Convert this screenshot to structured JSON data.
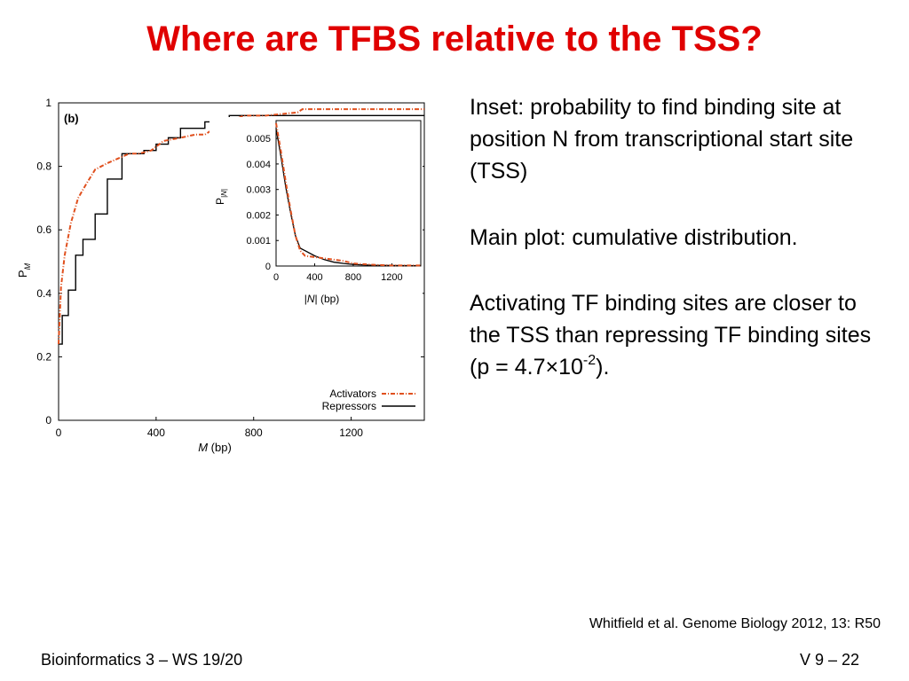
{
  "slide": {
    "title": "Where are TFBS relative to the TSS?",
    "paragraphs": {
      "inset": "Inset: probability to find binding site at position N from transcriptional start site (TSS)",
      "main": "Main plot: cumulative distribution.",
      "activating_text": "Activating TF binding sites are closer to the TSS than repressing TF binding sites (p = 4.7×10",
      "activating_exponent": "-2",
      "activating_tail": ")."
    },
    "citation": "Whitfield et al. Genome Biology 2012, 13: R50",
    "footer_left": "Bioinformatics 3 – WS 19/20",
    "footer_right": "V 9  – 22"
  },
  "chart_data": [
    {
      "type": "line",
      "panel_label": "(b)",
      "xlabel": "M (bp)",
      "ylabel": "P_M",
      "xlim": [
        0,
        1500
      ],
      "ylim": [
        0,
        1
      ],
      "x_ticks": [
        "0",
        "400",
        "800",
        "1200"
      ],
      "y_ticks": [
        "0",
        "0.2",
        "0.4",
        "0.6",
        "0.8",
        "1"
      ],
      "legend_position": "bottom-right",
      "colors": {
        "activators": "#e0501e",
        "repressors": "#000000"
      },
      "series": [
        {
          "name": "Activators",
          "x": [
            0,
            10,
            25,
            50,
            80,
            110,
            150,
            200,
            230,
            260,
            290,
            330,
            380,
            430,
            500,
            560,
            600,
            640,
            660,
            700,
            760,
            850,
            980,
            1000,
            1100,
            1500
          ],
          "y": [
            0.24,
            0.42,
            0.52,
            0.62,
            0.7,
            0.74,
            0.79,
            0.81,
            0.82,
            0.83,
            0.84,
            0.84,
            0.85,
            0.88,
            0.89,
            0.9,
            0.9,
            0.92,
            0.92,
            0.94,
            0.96,
            0.96,
            0.97,
            0.98,
            0.98,
            0.98
          ]
        },
        {
          "name": "Repressors",
          "x": [
            0,
            15,
            40,
            70,
            100,
            150,
            200,
            260,
            300,
            350,
            400,
            450,
            500,
            600,
            700,
            1500
          ],
          "y": [
            0.24,
            0.33,
            0.41,
            0.52,
            0.57,
            0.65,
            0.76,
            0.84,
            0.84,
            0.85,
            0.87,
            0.89,
            0.92,
            0.94,
            0.96,
            0.96
          ]
        }
      ]
    },
    {
      "type": "line",
      "panel_label": "inset",
      "xlabel": "|N| (bp)",
      "ylabel": "P_|N|",
      "xlim": [
        0,
        1500
      ],
      "ylim": [
        0,
        0.0057
      ],
      "x_ticks": [
        "0",
        "400",
        "800",
        "1200"
      ],
      "y_ticks": [
        "0",
        "0.001",
        "0.002",
        "0.003",
        "0.004",
        "0.005"
      ],
      "series": [
        {
          "name": "Activators",
          "x": [
            0,
            50,
            100,
            150,
            200,
            250,
            300,
            400,
            500,
            600,
            700,
            800,
            1000,
            1200,
            1500
          ],
          "y": [
            0.0056,
            0.0045,
            0.0033,
            0.0022,
            0.0012,
            0.0006,
            0.0004,
            0.00035,
            0.0003,
            0.00025,
            0.0002,
            0.0001,
            5e-05,
            2e-05,
            2e-05
          ]
        },
        {
          "name": "Repressors",
          "x": [
            0,
            50,
            100,
            150,
            200,
            250,
            300,
            400,
            500,
            600,
            700,
            800,
            1000,
            1200,
            1500
          ],
          "y": [
            0.0054,
            0.0043,
            0.0031,
            0.0021,
            0.0012,
            0.0007,
            0.0006,
            0.0004,
            0.00025,
            0.00015,
            0.0001,
            6e-05,
            3e-05,
            2e-05,
            1e-05
          ]
        }
      ]
    }
  ]
}
